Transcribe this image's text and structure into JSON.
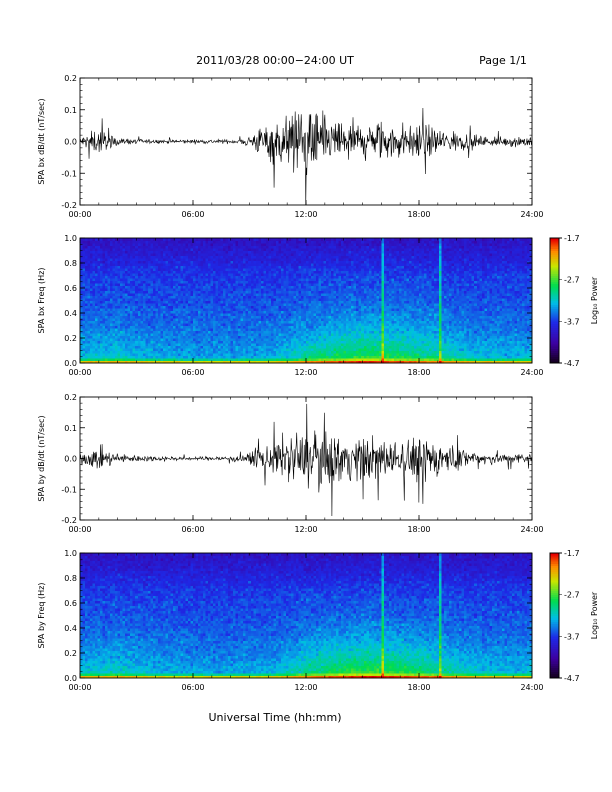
{
  "header": {
    "title": "2011/03/28  00:00−24:00 UT",
    "page": "Page 1/1"
  },
  "footer": {
    "xlabel": "Universal Time (hh:mm)"
  },
  "chart_data": [
    {
      "type": "line",
      "ylabel": "SPA bx dB/dt (nT/sec)",
      "xlim": [
        0,
        24
      ],
      "ylim": [
        -0.2,
        0.2
      ],
      "y_ticks": [
        "0.2",
        "0.1",
        "0.0",
        "-0.1",
        "-0.2"
      ],
      "x_ticks": [
        "00:00",
        "06:00",
        "12:00",
        "18:00",
        "24:00"
      ],
      "series": [
        {
          "x": [
            0,
            0.5,
            1,
            1.5,
            2,
            3,
            4,
            5,
            6,
            7,
            8,
            8.5,
            9,
            9.5,
            10,
            10.5,
            11,
            11.5,
            12,
            12.5,
            13,
            13.5,
            14,
            14.5,
            15,
            15.5,
            16,
            16.5,
            17,
            17.5,
            18,
            18.5,
            19,
            20,
            21,
            22,
            23,
            24
          ],
          "amplitude": [
            0.03,
            0.05,
            0.08,
            0.04,
            0.02,
            0.015,
            0.012,
            0.012,
            0.012,
            0.012,
            0.012,
            0.015,
            0.04,
            0.08,
            0.12,
            0.14,
            0.18,
            0.2,
            0.19,
            0.17,
            0.15,
            0.14,
            0.14,
            0.13,
            0.12,
            0.12,
            0.12,
            0.11,
            0.11,
            0.1,
            0.1,
            0.09,
            0.08,
            0.06,
            0.04,
            0.03,
            0.03,
            0.04
          ]
        }
      ]
    },
    {
      "type": "heatmap",
      "ylabel": "SPA bx Freq (Hz)",
      "xlim": [
        0,
        24
      ],
      "ylim": [
        0,
        1
      ],
      "y_ticks": [
        "1.0",
        "0.8",
        "0.6",
        "0.4",
        "0.2",
        "0.0"
      ],
      "x_ticks": [
        "00:00",
        "06:00",
        "12:00",
        "18:00",
        "24:00"
      ],
      "colorbar": {
        "label": "Log₁₀ Power",
        "min": -4.7,
        "max": -1.7,
        "ticks": [
          "-1.7",
          "-2.7",
          "-3.7",
          "-4.7"
        ]
      },
      "activity_profile": [
        0.3,
        0.35,
        0.4,
        0.3,
        0.25,
        0.22,
        0.2,
        0.2,
        0.2,
        0.2,
        0.22,
        0.35,
        0.55,
        0.7,
        0.8,
        0.9,
        0.85,
        0.8,
        0.7,
        0.6,
        0.45,
        0.35,
        0.3,
        0.3,
        0.3
      ]
    },
    {
      "type": "line",
      "ylabel": "SPA by dB/dt (nT/sec)",
      "xlim": [
        0,
        24
      ],
      "ylim": [
        -0.2,
        0.2
      ],
      "y_ticks": [
        "0.2",
        "0.1",
        "0.0",
        "-0.1",
        "-0.2"
      ],
      "x_ticks": [
        "00:00",
        "06:00",
        "12:00",
        "18:00",
        "24:00"
      ],
      "series": [
        {
          "x": [
            0,
            0.5,
            1,
            1.5,
            2,
            3,
            4,
            5,
            6,
            7,
            8,
            8.5,
            9,
            9.5,
            10,
            10.5,
            11,
            11.5,
            12,
            12.5,
            13,
            13.5,
            14,
            14.5,
            15,
            15.5,
            16,
            16.5,
            17,
            17.5,
            18,
            18.5,
            19,
            20,
            21,
            22,
            23,
            24
          ],
          "amplitude": [
            0.03,
            0.05,
            0.07,
            0.05,
            0.03,
            0.02,
            0.015,
            0.012,
            0.012,
            0.012,
            0.015,
            0.02,
            0.03,
            0.06,
            0.09,
            0.12,
            0.14,
            0.15,
            0.16,
            0.18,
            0.2,
            0.16,
            0.14,
            0.13,
            0.12,
            0.13,
            0.12,
            0.11,
            0.12,
            0.13,
            0.13,
            0.14,
            0.1,
            0.07,
            0.05,
            0.04,
            0.03,
            0.03
          ]
        }
      ]
    },
    {
      "type": "heatmap",
      "ylabel": "SPA by Freq (Hz)",
      "xlim": [
        0,
        24
      ],
      "ylim": [
        0,
        1
      ],
      "y_ticks": [
        "1.0",
        "0.8",
        "0.6",
        "0.4",
        "0.2",
        "0.0"
      ],
      "x_ticks": [
        "00:00",
        "06:00",
        "12:00",
        "18:00",
        "24:00"
      ],
      "colorbar": {
        "label": "Log₁₀ Power",
        "min": -4.7,
        "max": -1.7,
        "ticks": [
          "-1.7",
          "-2.7",
          "-3.7",
          "-4.7"
        ]
      },
      "activity_profile": [
        0.35,
        0.4,
        0.45,
        0.35,
        0.28,
        0.24,
        0.22,
        0.2,
        0.2,
        0.22,
        0.25,
        0.4,
        0.6,
        0.75,
        0.85,
        0.95,
        0.9,
        0.85,
        0.75,
        0.65,
        0.5,
        0.38,
        0.32,
        0.3,
        0.32
      ]
    }
  ]
}
